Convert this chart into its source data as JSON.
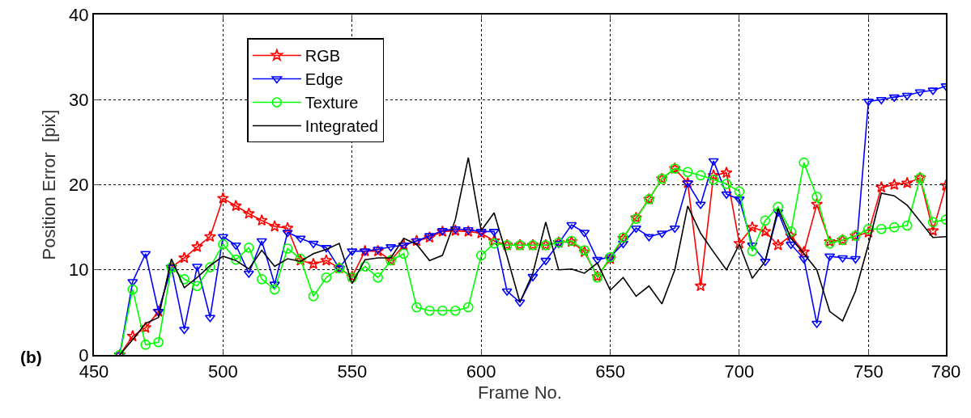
{
  "chart_data": {
    "type": "line",
    "xlabel": "Frame No.",
    "ylabel": "Position Error  [pix]",
    "annotations": [
      "(b)"
    ],
    "x": [
      460,
      465,
      470,
      475,
      480,
      485,
      490,
      495,
      500,
      505,
      510,
      515,
      520,
      525,
      530,
      535,
      540,
      545,
      550,
      555,
      560,
      565,
      570,
      575,
      580,
      585,
      590,
      595,
      600,
      605,
      610,
      615,
      620,
      625,
      630,
      635,
      640,
      645,
      650,
      655,
      660,
      665,
      670,
      675,
      680,
      685,
      690,
      695,
      700,
      705,
      710,
      715,
      720,
      725,
      730,
      735,
      740,
      745,
      750,
      755,
      760,
      765,
      770,
      775,
      780
    ],
    "series": [
      {
        "name": "RGB",
        "color": "#ff0000",
        "marker": "star",
        "values": [
          0,
          2.2,
          3.2,
          5.1,
          10.3,
          11.4,
          12.7,
          13.9,
          18.4,
          17.5,
          16.6,
          15.8,
          15.1,
          14.9,
          11.1,
          10.7,
          11.1,
          10.2,
          9.2,
          12.2,
          12.2,
          11.1,
          12.9,
          13.4,
          13.8,
          14.5,
          14.6,
          14.5,
          14.3,
          13.4,
          12.9,
          12.9,
          12.9,
          12.9,
          13.2,
          13.3,
          12.1,
          9.2,
          11.3,
          13.7,
          16.1,
          18.3,
          20.7,
          21.9,
          20.2,
          8.1,
          21.1,
          21.4,
          13.1,
          15.0,
          14.5,
          12.9,
          14.0,
          12.1,
          17.7,
          13.3,
          13.5,
          14.0,
          14.4,
          19.7,
          20.0,
          20.2,
          20.8,
          14.6,
          19.9
        ]
      },
      {
        "name": "Edge",
        "color": "#0000ff",
        "marker": "triangle",
        "values": [
          0,
          8.6,
          11.9,
          5.1,
          10.3,
          3.0,
          10.4,
          4.4,
          13.9,
          12.9,
          9.6,
          13.4,
          8.3,
          14.4,
          13.7,
          13.1,
          12.6,
          10.2,
          12.2,
          12.2,
          12.4,
          12.7,
          12.9,
          13.4,
          14.0,
          14.6,
          14.8,
          14.7,
          14.5,
          14.5,
          7.5,
          6.2,
          9.2,
          11.1,
          13.1,
          15.3,
          14.4,
          11.2,
          11.5,
          13.1,
          14.9,
          13.9,
          14.3,
          14.9,
          20.2,
          17.7,
          22.8,
          18.9,
          18.3,
          12.9,
          11.0,
          16.8,
          13.0,
          11.3,
          3.7,
          11.6,
          11.4,
          11.3,
          29.8,
          30.0,
          30.3,
          30.5,
          30.9,
          31.1,
          31.6
        ]
      },
      {
        "name": "Texture",
        "color": "#00ff00",
        "marker": "circle",
        "values": [
          0,
          7.7,
          1.2,
          1.5,
          10.3,
          8.9,
          8.1,
          10.3,
          13.0,
          11.2,
          12.6,
          8.9,
          7.7,
          12.5,
          11.3,
          6.9,
          9.1,
          10.2,
          9.1,
          10.4,
          9.1,
          11.1,
          11.9,
          5.6,
          5.2,
          5.2,
          5.2,
          5.6,
          11.7,
          13.1,
          12.9,
          12.9,
          12.9,
          12.9,
          13.2,
          13.4,
          12.3,
          9.1,
          11.5,
          13.8,
          16.0,
          18.3,
          20.7,
          21.9,
          21.5,
          21.1,
          20.6,
          20.1,
          19.2,
          12.2,
          15.8,
          17.4,
          14.5,
          22.6,
          18.6,
          13.1,
          13.5,
          14.0,
          14.8,
          14.8,
          15.0,
          15.2,
          20.8,
          15.6,
          15.9
        ]
      },
      {
        "name": "Integrated",
        "color": "#000000",
        "marker": "none",
        "values": [
          0,
          1.8,
          3.7,
          4.4,
          11.3,
          7.9,
          9.1,
          10.5,
          11.6,
          11.1,
          10.1,
          12.3,
          10.4,
          11.3,
          11.0,
          11.9,
          12.4,
          13.1,
          8.4,
          11.2,
          11.4,
          11.4,
          13.7,
          13.0,
          11.1,
          11.7,
          15.9,
          23.2,
          14.6,
          16.7,
          11.6,
          6.2,
          9.6,
          15.6,
          10.0,
          10.1,
          9.6,
          10.8,
          7.6,
          9.1,
          6.9,
          8.1,
          6.0,
          10.0,
          17.5,
          14.3,
          12.1,
          10.0,
          13.0,
          9.0,
          11.0,
          17.2,
          13.7,
          11.9,
          10.0,
          5.1,
          4.0,
          7.5,
          13.0,
          19.0,
          18.7,
          17.6,
          15.7,
          13.8,
          13.9
        ]
      }
    ],
    "xlim": [
      450,
      780
    ],
    "xticks": [
      450,
      500,
      550,
      600,
      650,
      700,
      750,
      780
    ],
    "ylim": [
      0,
      40
    ],
    "yticks": [
      0,
      10,
      20,
      30,
      40
    ],
    "grid": true,
    "legend": "top left",
    "line_style": "solid"
  }
}
